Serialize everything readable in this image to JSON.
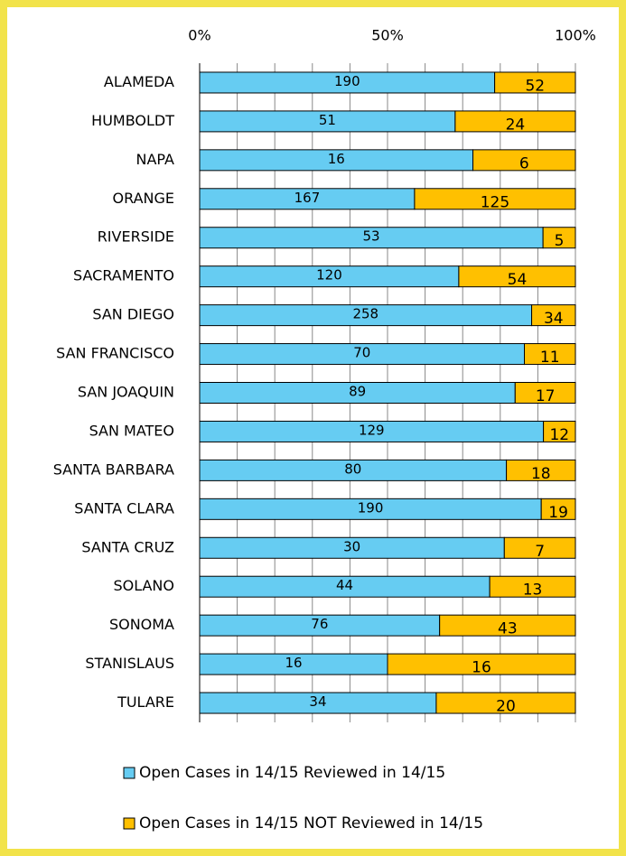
{
  "chart_data": {
    "type": "bar",
    "orientation": "horizontal",
    "stacking": "percent",
    "categories": [
      "ALAMEDA",
      "HUMBOLDT",
      "NAPA",
      "ORANGE",
      "RIVERSIDE",
      "SACRAMENTO",
      "SAN DIEGO",
      "SAN FRANCISCO",
      "SAN JOAQUIN",
      "SAN MATEO",
      "SANTA BARBARA",
      "SANTA CLARA",
      "SANTA CRUZ",
      "SOLANO",
      "SONOMA",
      "STANISLAUS",
      "TULARE"
    ],
    "series": [
      {
        "name": "Open Cases in 14/15 Reviewed in 14/15",
        "color": "#66ccf2",
        "values": [
          190,
          51,
          16,
          167,
          53,
          120,
          258,
          70,
          89,
          129,
          80,
          190,
          30,
          44,
          76,
          16,
          34
        ]
      },
      {
        "name": "Open Cases in 14/15 NOT Reviewed in 14/15",
        "color": "#ffc000",
        "values": [
          52,
          24,
          6,
          125,
          5,
          54,
          34,
          11,
          17,
          12,
          18,
          19,
          7,
          13,
          43,
          16,
          20
        ]
      }
    ],
    "xlim": [
      0,
      100
    ],
    "xticks": [
      {
        "value": 0,
        "label": "0%"
      },
      {
        "value": 50,
        "label": "50%"
      },
      {
        "value": 100,
        "label": "100%"
      }
    ],
    "xminorticks": [
      10,
      20,
      30,
      40,
      60,
      70,
      80,
      90
    ],
    "grid": true,
    "legend": "bottom"
  }
}
